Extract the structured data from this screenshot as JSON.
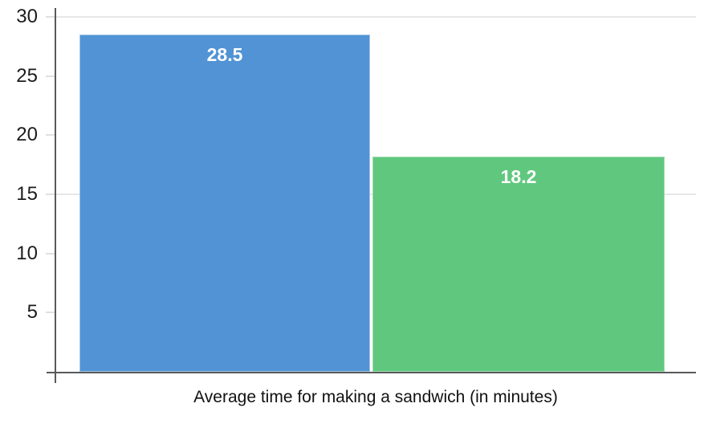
{
  "chart_data": {
    "type": "bar",
    "title": "",
    "xlabel": "Average time for making a sandwich (in minutes)",
    "ylabel": "",
    "categories": [
      "",
      ""
    ],
    "values": [
      28.5,
      18.2
    ],
    "bar_labels": [
      "28.5",
      "18.2"
    ],
    "bar_colors": [
      "#5193d5",
      "#60c87e"
    ],
    "bar_border_colors": [
      "#a3c6ea",
      "#a2dcb2"
    ],
    "value_label_color": "#ffffff",
    "ylim": [
      0,
      30
    ],
    "yticks": [
      5,
      10,
      15,
      20,
      25,
      30
    ],
    "ytick_labels": [
      "5",
      "10",
      "15",
      "20",
      "25",
      "30"
    ],
    "gridlines_at": [
      15,
      30
    ],
    "grid": "horizontal-sparse",
    "legend": "none",
    "background_color": "#ffffff",
    "axis_color": "#58595b",
    "gridline_color": "#e7e7e7",
    "tick_color": "#e0e0e0",
    "tick_label_color": "#1c1c1c"
  }
}
